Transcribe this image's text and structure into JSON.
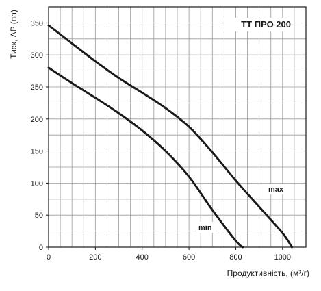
{
  "chart_data": {
    "type": "line",
    "title": "ТТ ПРО 200",
    "xlabel": "Продуктивність, (м³/г)",
    "ylabel": "Тиск, ΔP (па)",
    "xlim": [
      0,
      1100
    ],
    "ylim": [
      0,
      375
    ],
    "grid": true,
    "x_ticks": [
      "0",
      "200",
      "400",
      "600",
      "800",
      "1000"
    ],
    "y_ticks": [
      "0",
      "50",
      "100",
      "150",
      "200",
      "250",
      "300",
      "350"
    ],
    "series": [
      {
        "name": "max",
        "x": [
          0,
          100,
          200,
          300,
          400,
          500,
          600,
          700,
          800,
          900,
          1000,
          1040
        ],
        "y": [
          346,
          318,
          290,
          264,
          241,
          217,
          188,
          148,
          104,
          63,
          22,
          0
        ]
      },
      {
        "name": "min",
        "x": [
          0,
          100,
          200,
          300,
          400,
          500,
          600,
          700,
          800,
          830
        ],
        "y": [
          280,
          256,
          233,
          209,
          182,
          150,
          110,
          58,
          10,
          0
        ]
      }
    ],
    "line_color": "#1a1a1a",
    "grid_color": "#9a9a9a"
  }
}
